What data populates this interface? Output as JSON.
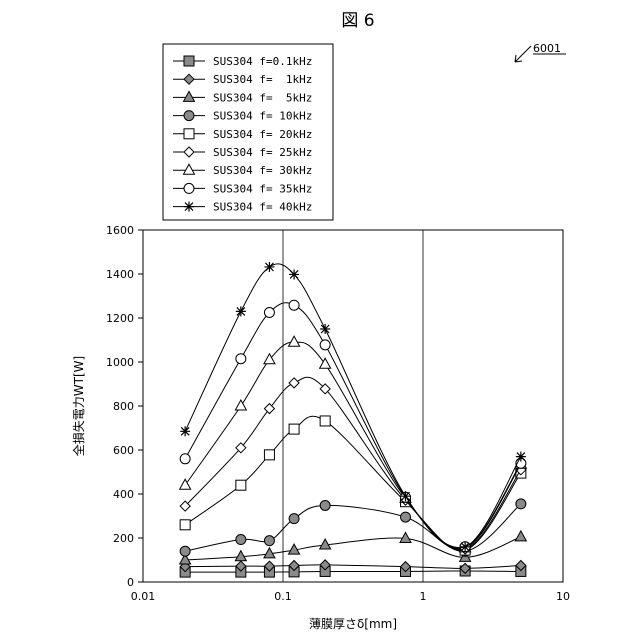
{
  "figure_title": "図 6",
  "reference_number": "6001",
  "chart_data": {
    "type": "line",
    "x_scale": "log",
    "xlim": [
      0.01,
      10
    ],
    "ylim": [
      0,
      1600
    ],
    "xlabel": "薄膜厚さδ[mm]",
    "ylabel": "全損失電力WT[W]",
    "x_ticks": [
      "0.01",
      "0.1",
      "1",
      "10"
    ],
    "y_ticks": [
      "0",
      "200",
      "400",
      "600",
      "800",
      "1000",
      "1200",
      "1400",
      "1600"
    ],
    "grid": true,
    "legend_position": "top-left, outside plot",
    "x": [
      0.02,
      0.05,
      0.08,
      0.12,
      0.2,
      0.75,
      2,
      5
    ],
    "series": [
      {
        "name": "SUS304 f=0.1kHz",
        "marker": "filled-square",
        "values": [
          45,
          45,
          45,
          46,
          48,
          48,
          50,
          48
        ]
      },
      {
        "name": "SUS304 f=  1kHz",
        "marker": "filled-diamond",
        "values": [
          70,
          72,
          72,
          75,
          78,
          70,
          62,
          75
        ]
      },
      {
        "name": "SUS304 f=  5kHz",
        "marker": "filled-triangle",
        "values": [
          100,
          115,
          128,
          145,
          168,
          198,
          112,
          205
        ]
      },
      {
        "name": "SUS304 f= 10kHz",
        "marker": "filled-circle",
        "values": [
          140,
          193,
          188,
          288,
          348,
          295,
          140,
          355
        ]
      },
      {
        "name": "SUS304 f= 20kHz",
        "marker": "open-square",
        "values": [
          260,
          440,
          578,
          695,
          732,
          365,
          145,
          495
        ]
      },
      {
        "name": "SUS304 f= 25kHz",
        "marker": "open-diamond",
        "values": [
          345,
          610,
          788,
          905,
          878,
          372,
          150,
          510
        ]
      },
      {
        "name": "SUS304 f= 30kHz",
        "marker": "open-triangle",
        "values": [
          440,
          800,
          1010,
          1090,
          990,
          380,
          155,
          535
        ]
      },
      {
        "name": "SUS304 f= 35kHz",
        "marker": "open-circle",
        "values": [
          560,
          1015,
          1225,
          1258,
          1078,
          385,
          160,
          540
        ]
      },
      {
        "name": "SUS304 f= 40kHz",
        "marker": "asterisk",
        "values": [
          685,
          1230,
          1432,
          1398,
          1150,
          390,
          160,
          570
        ]
      }
    ]
  }
}
